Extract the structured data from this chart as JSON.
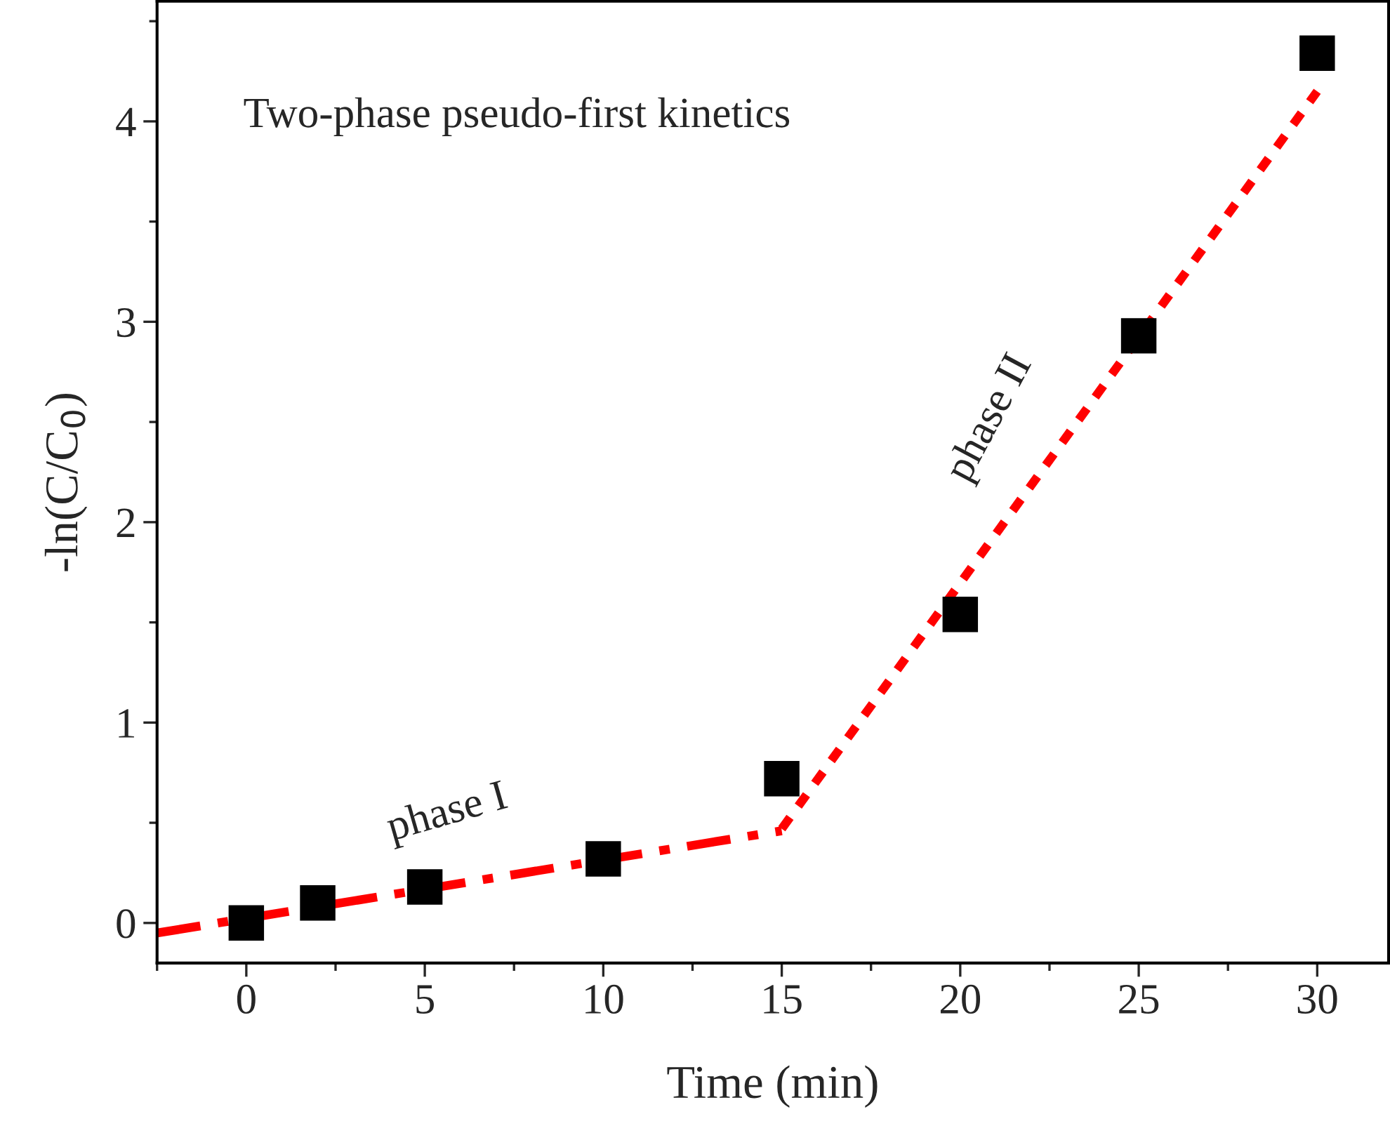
{
  "chart_data": {
    "type": "scatter",
    "xlabel": "Time (min)",
    "ylabel": "-ln(C/C$_{0}$)",
    "xlim": [
      -2.5,
      32
    ],
    "ylim": [
      -0.2,
      4.6
    ],
    "xticks": [
      0,
      5,
      10,
      15,
      20,
      25,
      30
    ],
    "yticks": [
      0,
      1,
      2,
      3,
      4
    ],
    "grid": false,
    "marker": "square",
    "series": [
      {
        "color": "#000000",
        "x": [
          0,
          2,
          5,
          10,
          15,
          20,
          25,
          30
        ],
        "values": [
          0,
          0.1,
          0.18,
          0.32,
          0.72,
          1.54,
          2.93,
          4.34
        ]
      },
      {
        "type": "line",
        "color": "#ff0000",
        "line_style": "dashed",
        "marker": "none",
        "x": [
          -2.5,
          15
        ],
        "values": [
          -0.05,
          0.46
        ]
      },
      {
        "type": "line",
        "color": "#ff0000",
        "line_style": "dotted",
        "marker": "none",
        "x": [
          15,
          30
        ],
        "values": [
          0.47,
          4.15
        ]
      }
    ],
    "annotations": [
      "Two-phase pseudo-first kinetics",
      "phase I",
      "phase II"
    ]
  }
}
